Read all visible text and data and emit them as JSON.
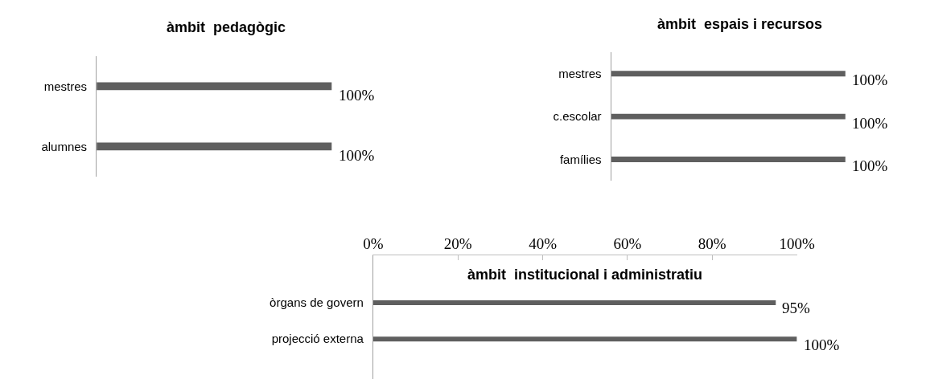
{
  "chart_data": [
    {
      "type": "bar",
      "orientation": "horizontal",
      "title": "àmbit  pedagògic",
      "categories": [
        "mestres",
        "alumnes"
      ],
      "values": [
        100,
        100
      ],
      "value_labels": [
        "100%",
        "100%"
      ],
      "color": "#5f5f5f"
    },
    {
      "type": "bar",
      "orientation": "horizontal",
      "title": "àmbit  espais i recursos",
      "categories": [
        "mestres",
        "c.escolar",
        "famílies"
      ],
      "values": [
        100,
        100,
        100
      ],
      "value_labels": [
        "100%",
        "100%",
        "100%"
      ],
      "color": "#5f5f5f"
    },
    {
      "type": "bar",
      "orientation": "horizontal",
      "title": "àmbit  institucional i administratiu",
      "categories": [
        "òrgans de govern",
        "projecció externa"
      ],
      "values": [
        95,
        100
      ],
      "value_labels": [
        "95%",
        "100%"
      ],
      "color": "#5f5f5f",
      "xlim": [
        0,
        100
      ],
      "xticks": [
        {
          "value": 0,
          "label": "0%"
        },
        {
          "value": 20,
          "label": "20%"
        },
        {
          "value": 40,
          "label": "40%"
        },
        {
          "value": 60,
          "label": "60%"
        },
        {
          "value": 80,
          "label": "80%"
        },
        {
          "value": 100,
          "label": "100%"
        }
      ]
    }
  ]
}
